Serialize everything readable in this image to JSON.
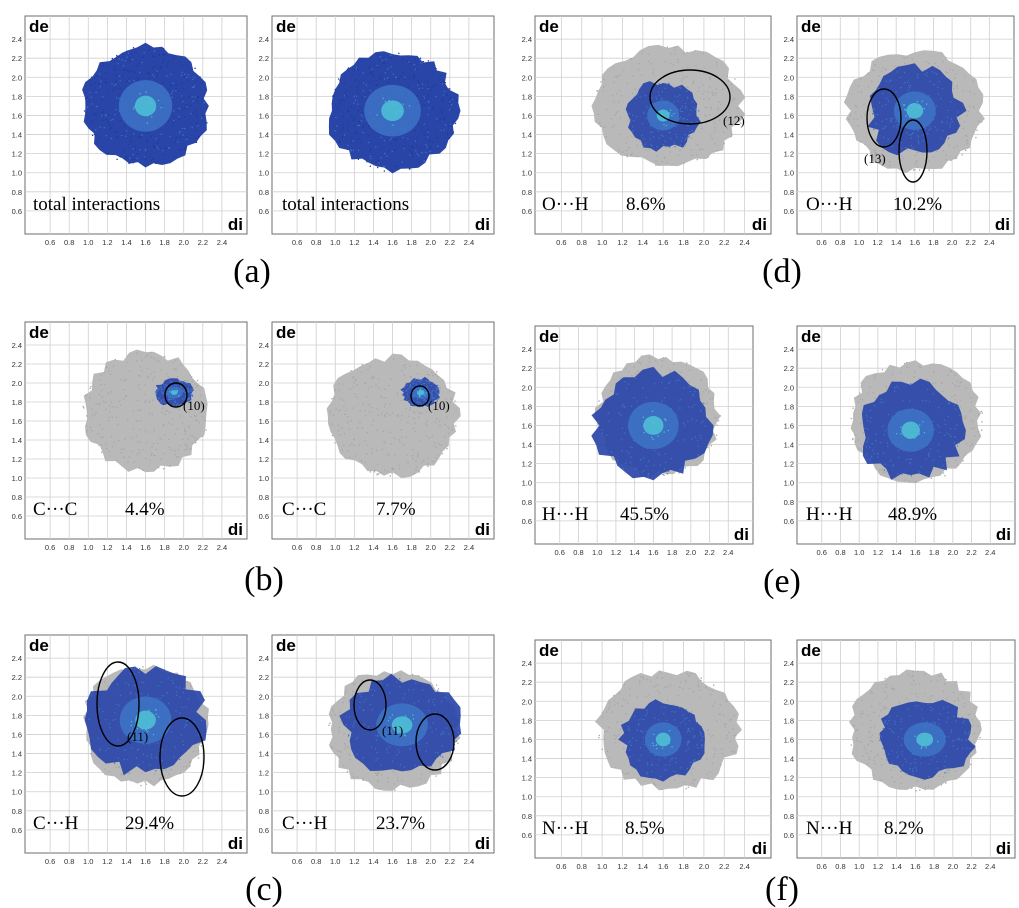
{
  "figure": {
    "axis_x_label": "di",
    "axis_y_label": "de",
    "ticks": [
      "0.6",
      "0.8",
      "1.0",
      "1.2",
      "1.4",
      "1.6",
      "1.8",
      "2.0",
      "2.2",
      "2.4"
    ],
    "colors": {
      "gray": "#b9b9b9",
      "blue_dark": "#2a45a8",
      "blue_mid": "#3e77c8",
      "cyan": "#4fc3d6",
      "green": "#7ec98a",
      "grid": "#cfcfcf",
      "frame": "#6e6e6e"
    }
  },
  "chart_data": [
    {
      "type": "scatter",
      "panel": "(a)",
      "label": "total interactions",
      "xlabel": "di",
      "ylabel": "de",
      "xlim": [
        0.4,
        2.6
      ],
      "ylim": [
        0.4,
        2.6
      ],
      "grid": true,
      "highlight": "all",
      "gray_region": {
        "cx": 1.6,
        "cy": 1.7,
        "rx": 0.65,
        "ry": 0.62
      },
      "blue_region": {
        "cx": 1.6,
        "cy": 1.7,
        "rx": 0.62,
        "ry": 0.6
      }
    },
    {
      "type": "scatter",
      "panel": "(a)",
      "label": "total interactions",
      "xlabel": "di",
      "ylabel": "de",
      "xlim": [
        0.4,
        2.6
      ],
      "ylim": [
        0.4,
        2.6
      ],
      "grid": true,
      "highlight": "all",
      "gray_region": {
        "cx": 1.6,
        "cy": 1.65,
        "rx": 0.68,
        "ry": 0.62
      },
      "blue_region": {
        "cx": 1.6,
        "cy": 1.65,
        "rx": 0.66,
        "ry": 0.6
      }
    },
    {
      "type": "scatter",
      "panel": "(b)",
      "contact": "C···C",
      "percent": "4.4%",
      "marker": "(10)",
      "xlabel": "di",
      "ylabel": "de",
      "xlim": [
        0.4,
        2.6
      ],
      "ylim": [
        0.4,
        2.6
      ],
      "grid": true,
      "gray_region": {
        "cx": 1.6,
        "cy": 1.7,
        "rx": 0.65,
        "ry": 0.62
      },
      "blue_region": {
        "cx": 1.9,
        "cy": 1.9,
        "rx": 0.2,
        "ry": 0.14
      }
    },
    {
      "type": "scatter",
      "panel": "(b)",
      "contact": "C···C",
      "percent": "7.7%",
      "marker": "(10)",
      "xlabel": "di",
      "ylabel": "de",
      "xlim": [
        0.4,
        2.6
      ],
      "ylim": [
        0.4,
        2.6
      ],
      "grid": true,
      "gray_region": {
        "cx": 1.6,
        "cy": 1.65,
        "rx": 0.68,
        "ry": 0.62
      },
      "blue_region": {
        "cx": 1.9,
        "cy": 1.9,
        "rx": 0.2,
        "ry": 0.15
      }
    },
    {
      "type": "scatter",
      "panel": "(c)",
      "contact": "C···H",
      "percent": "29.4%",
      "marker": "(11)",
      "xlabel": "di",
      "ylabel": "de",
      "xlim": [
        0.4,
        2.6
      ],
      "ylim": [
        0.4,
        2.6
      ],
      "grid": true,
      "gray_region": {
        "cx": 1.6,
        "cy": 1.7,
        "rx": 0.65,
        "ry": 0.62
      },
      "blue_region": {
        "cx": 1.6,
        "cy": 1.75,
        "rx": 0.6,
        "ry": 0.55
      }
    },
    {
      "type": "scatter",
      "panel": "(c)",
      "contact": "C···H",
      "percent": "23.7%",
      "marker": "(11)",
      "xlabel": "di",
      "ylabel": "de",
      "xlim": [
        0.4,
        2.6
      ],
      "ylim": [
        0.4,
        2.6
      ],
      "grid": true,
      "gray_region": {
        "cx": 1.6,
        "cy": 1.65,
        "rx": 0.68,
        "ry": 0.62
      },
      "blue_region": {
        "cx": 1.7,
        "cy": 1.7,
        "rx": 0.6,
        "ry": 0.5
      }
    },
    {
      "type": "scatter",
      "panel": "(d)",
      "contact": "O···H",
      "percent": "8.6%",
      "marker": "(12)",
      "xlabel": "di",
      "ylabel": "de",
      "xlim": [
        0.4,
        2.6
      ],
      "ylim": [
        0.4,
        2.6
      ],
      "grid": true,
      "gray_region": {
        "cx": 1.65,
        "cy": 1.7,
        "rx": 0.72,
        "ry": 0.62
      },
      "blue_region": {
        "cx": 1.6,
        "cy": 1.6,
        "rx": 0.35,
        "ry": 0.35
      }
    },
    {
      "type": "scatter",
      "panel": "(d)",
      "contact": "O···H",
      "percent": "10.2%",
      "marker": "(13)",
      "xlabel": "di",
      "ylabel": "de",
      "xlim": [
        0.4,
        2.6
      ],
      "ylim": [
        0.4,
        2.6
      ],
      "grid": true,
      "gray_region": {
        "cx": 1.6,
        "cy": 1.65,
        "rx": 0.72,
        "ry": 0.62
      },
      "blue_region": {
        "cx": 1.6,
        "cy": 1.65,
        "rx": 0.5,
        "ry": 0.45
      }
    },
    {
      "type": "scatter",
      "panel": "(e)",
      "contact": "H···H",
      "percent": "45.5%",
      "xlabel": "di",
      "ylabel": "de",
      "xlim": [
        0.4,
        2.6
      ],
      "ylim": [
        0.4,
        2.6
      ],
      "grid": true,
      "gray_region": {
        "cx": 1.65,
        "cy": 1.7,
        "rx": 0.65,
        "ry": 0.62
      },
      "blue_region": {
        "cx": 1.6,
        "cy": 1.6,
        "rx": 0.6,
        "ry": 0.55
      }
    },
    {
      "type": "scatter",
      "panel": "(e)",
      "contact": "H···H",
      "percent": "48.9%",
      "xlabel": "di",
      "ylabel": "de",
      "xlim": [
        0.4,
        2.6
      ],
      "ylim": [
        0.4,
        2.6
      ],
      "grid": true,
      "gray_region": {
        "cx": 1.6,
        "cy": 1.65,
        "rx": 0.7,
        "ry": 0.62
      },
      "blue_region": {
        "cx": 1.55,
        "cy": 1.55,
        "rx": 0.55,
        "ry": 0.5
      }
    },
    {
      "type": "scatter",
      "panel": "(f)",
      "contact": "N···H",
      "percent": "8.5%",
      "xlabel": "di",
      "ylabel": "de",
      "xlim": [
        0.4,
        2.6
      ],
      "ylim": [
        0.4,
        2.6
      ],
      "grid": true,
      "gray_region": {
        "cx": 1.65,
        "cy": 1.7,
        "rx": 0.68,
        "ry": 0.62
      },
      "blue_region": {
        "cx": 1.6,
        "cy": 1.6,
        "rx": 0.4,
        "ry": 0.4
      }
    },
    {
      "type": "scatter",
      "panel": "(f)",
      "contact": "N···H",
      "percent": "8.2%",
      "xlabel": "di",
      "ylabel": "de",
      "xlim": [
        0.4,
        2.6
      ],
      "ylim": [
        0.4,
        2.6
      ],
      "grid": true,
      "gray_region": {
        "cx": 1.6,
        "cy": 1.7,
        "rx": 0.7,
        "ry": 0.62
      },
      "blue_region": {
        "cx": 1.7,
        "cy": 1.6,
        "rx": 0.5,
        "ry": 0.4
      }
    }
  ],
  "panel_labels": [
    "(a)",
    "(b)",
    "(c)",
    "(d)",
    "(e)",
    "(f)"
  ]
}
